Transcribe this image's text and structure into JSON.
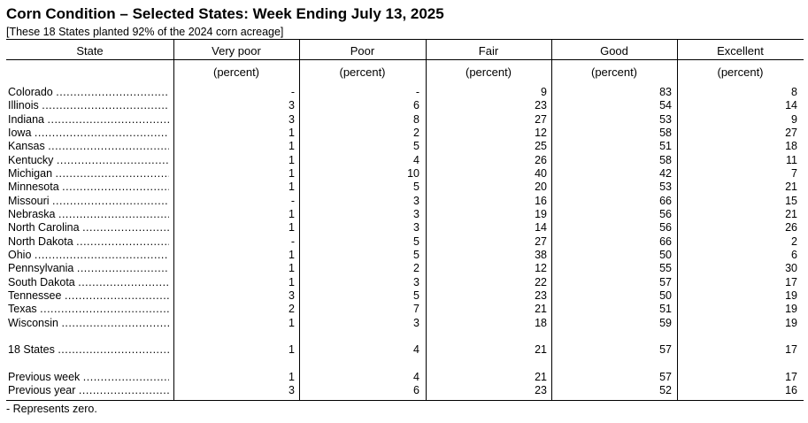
{
  "title": "Corn Condition – Selected States: Week Ending July 13, 2025",
  "subtitle": "[These 18 States planted 92% of the 2024 corn acreage]",
  "columns": [
    "State",
    "Very poor",
    "Poor",
    "Fair",
    "Good",
    "Excellent"
  ],
  "unit_label": "(percent)",
  "rows": [
    {
      "state": "Colorado",
      "values": [
        "-",
        "-",
        "9",
        "83",
        "8"
      ]
    },
    {
      "state": "Illinois",
      "values": [
        "3",
        "6",
        "23",
        "54",
        "14"
      ]
    },
    {
      "state": "Indiana",
      "values": [
        "3",
        "8",
        "27",
        "53",
        "9"
      ]
    },
    {
      "state": "Iowa",
      "values": [
        "1",
        "2",
        "12",
        "58",
        "27"
      ]
    },
    {
      "state": "Kansas",
      "values": [
        "1",
        "5",
        "25",
        "51",
        "18"
      ]
    },
    {
      "state": "Kentucky",
      "values": [
        "1",
        "4",
        "26",
        "58",
        "11"
      ]
    },
    {
      "state": "Michigan",
      "values": [
        "1",
        "10",
        "40",
        "42",
        "7"
      ]
    },
    {
      "state": "Minnesota",
      "values": [
        "1",
        "5",
        "20",
        "53",
        "21"
      ]
    },
    {
      "state": "Missouri",
      "values": [
        "-",
        "3",
        "16",
        "66",
        "15"
      ]
    },
    {
      "state": "Nebraska",
      "values": [
        "1",
        "3",
        "19",
        "56",
        "21"
      ]
    },
    {
      "state": "North Carolina",
      "values": [
        "1",
        "3",
        "14",
        "56",
        "26"
      ]
    },
    {
      "state": "North Dakota",
      "values": [
        "-",
        "5",
        "27",
        "66",
        "2"
      ]
    },
    {
      "state": "Ohio",
      "values": [
        "1",
        "5",
        "38",
        "50",
        "6"
      ]
    },
    {
      "state": "Pennsylvania",
      "values": [
        "1",
        "2",
        "12",
        "55",
        "30"
      ]
    },
    {
      "state": "South Dakota",
      "values": [
        "1",
        "3",
        "22",
        "57",
        "17"
      ]
    },
    {
      "state": "Tennessee",
      "values": [
        "3",
        "5",
        "23",
        "50",
        "19"
      ]
    },
    {
      "state": "Texas",
      "values": [
        "2",
        "7",
        "21",
        "51",
        "19"
      ]
    },
    {
      "state": "Wisconsin",
      "values": [
        "1",
        "3",
        "18",
        "59",
        "19"
      ]
    },
    {
      "state": "18 States",
      "values": [
        "1",
        "4",
        "21",
        "57",
        "17"
      ]
    },
    {
      "state": "Previous week",
      "values": [
        "1",
        "4",
        "21",
        "57",
        "17"
      ]
    },
    {
      "state": "Previous year",
      "values": [
        "3",
        "6",
        "23",
        "52",
        "16"
      ]
    }
  ],
  "leader": "......................................................................",
  "footnote": "- Represents zero."
}
